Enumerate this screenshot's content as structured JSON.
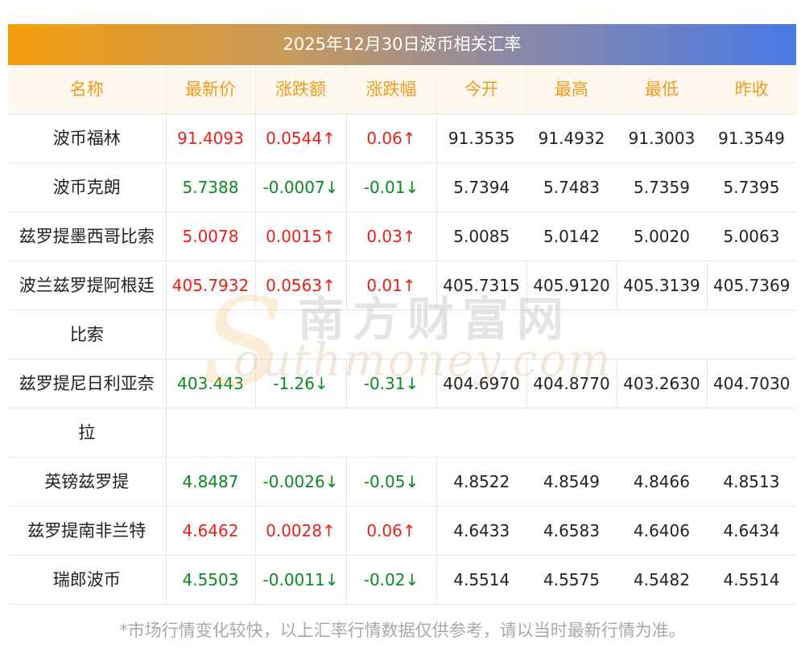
{
  "title": "2025年12月30日波币相关汇率",
  "headers": [
    "名称",
    "最新价",
    "涨跌额",
    "涨跌幅",
    "今开",
    "最高",
    "最低",
    "昨收"
  ],
  "rows": [
    {
      "name": "波币福林",
      "latest": "91.4093",
      "change": "0.0544↑",
      "pct": "0.06↑",
      "open": "91.3535",
      "high": "91.4932",
      "low": "91.3003",
      "prev": "91.3549",
      "dir": "up"
    },
    {
      "name": "波币克朗",
      "latest": "5.7388",
      "change": "-0.0007↓",
      "pct": "-0.01↓",
      "open": "5.7394",
      "high": "5.7483",
      "low": "5.7359",
      "prev": "5.7395",
      "dir": "down"
    },
    {
      "name": "兹罗提墨西哥比索",
      "latest": "5.0078",
      "change": "0.0015↑",
      "pct": "0.03↑",
      "open": "5.0085",
      "high": "5.0142",
      "low": "5.0020",
      "prev": "5.0063",
      "dir": "up"
    },
    {
      "name_line1": "波兰兹罗提阿根廷",
      "name_line2": "比索",
      "latest": "405.7932",
      "change": "0.0563↑",
      "pct": "0.01↑",
      "open": "405.7315",
      "high": "405.9120",
      "low": "405.3139",
      "prev": "405.7369",
      "dir": "up"
    },
    {
      "name_line1": "兹罗提尼日利亚奈",
      "name_line2": "拉",
      "latest": "403.443",
      "change": "-1.26↓",
      "pct": "-0.31↓",
      "open": "404.6970",
      "high": "404.8770",
      "low": "403.2630",
      "prev": "404.7030",
      "dir": "down"
    },
    {
      "name": "英镑兹罗提",
      "latest": "4.8487",
      "change": "-0.0026↓",
      "pct": "-0.05↓",
      "open": "4.8522",
      "high": "4.8549",
      "low": "4.8466",
      "prev": "4.8513",
      "dir": "down"
    },
    {
      "name": "兹罗提南非兰特",
      "latest": "4.6462",
      "change": "0.0028↑",
      "pct": "0.06↑",
      "open": "4.6433",
      "high": "4.6583",
      "low": "4.6406",
      "prev": "4.6434",
      "dir": "up"
    },
    {
      "name": "瑞郎波币",
      "latest": "4.5503",
      "change": "-0.0011↓",
      "pct": "-0.02↓",
      "open": "4.5514",
      "high": "4.5575",
      "low": "4.5482",
      "prev": "4.5514",
      "dir": "down"
    }
  ],
  "footnote": "*市场行情变化较快，以上汇率行情数据仅供参考，请以当时最新行情为准。",
  "watermark": {
    "cn": "南方财富网",
    "en": "outhmoney.com",
    "s": "S"
  },
  "colors": {
    "up": "#e9201a",
    "down": "#0a8a20",
    "header": "#f39a1b"
  }
}
